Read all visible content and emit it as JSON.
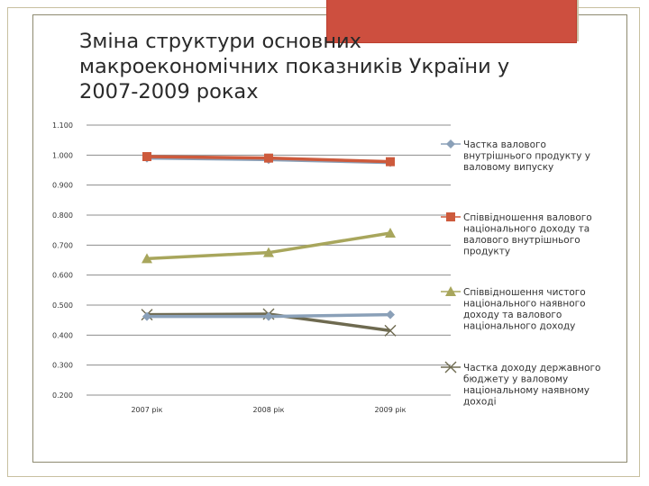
{
  "slide": {
    "title_lines": [
      "Зміна структури основних",
      "макроекономічних показників України у",
      "2007-2009 роках"
    ],
    "accent_color": "#cd4f3f"
  },
  "chart_data": {
    "type": "line",
    "categories": [
      "2007 рік",
      "2008 рік",
      "2009 рік"
    ],
    "ylim": [
      0.2,
      1.1
    ],
    "y_ticks": [
      "0.200",
      "0.300",
      "0.400",
      "0.500",
      "0.600",
      "0.700",
      "0.800",
      "0.900",
      "1.000",
      "1.100"
    ],
    "grid": "horizontal",
    "legend_position": "right",
    "series": [
      {
        "name_lines": [
          "Частка валового",
          "внутрішнього продукту у",
          "валовому випуску"
        ],
        "values": [
          0.99,
          0.985,
          0.975
        ],
        "color": "#8aa0b8",
        "marker": "diamond"
      },
      {
        "name_lines": [
          "Співвідношення валового",
          "національного доходу та",
          "валового внутрішнього",
          "продукту"
        ],
        "values": [
          0.995,
          0.99,
          0.978
        ],
        "color": "#cd5a3c",
        "marker": "square"
      },
      {
        "name_lines": [
          "Співвідношення чистого",
          "національного наявного",
          "доходу та валового",
          "національного доходу"
        ],
        "values": [
          0.655,
          0.675,
          0.74
        ],
        "color": "#a8a65c",
        "marker": "triangle"
      },
      {
        "name_lines": [
          "Частка доходу державного",
          "бюджету у валовому",
          "національному наявному",
          "доході"
        ],
        "values": [
          0.468,
          0.47,
          0.415
        ],
        "color": "#6e6a50",
        "marker": "x"
      },
      {
        "name_lines": [],
        "values": [
          0.462,
          0.462,
          0.468
        ],
        "color": "#8aa0b8",
        "marker": "diamond"
      }
    ]
  }
}
